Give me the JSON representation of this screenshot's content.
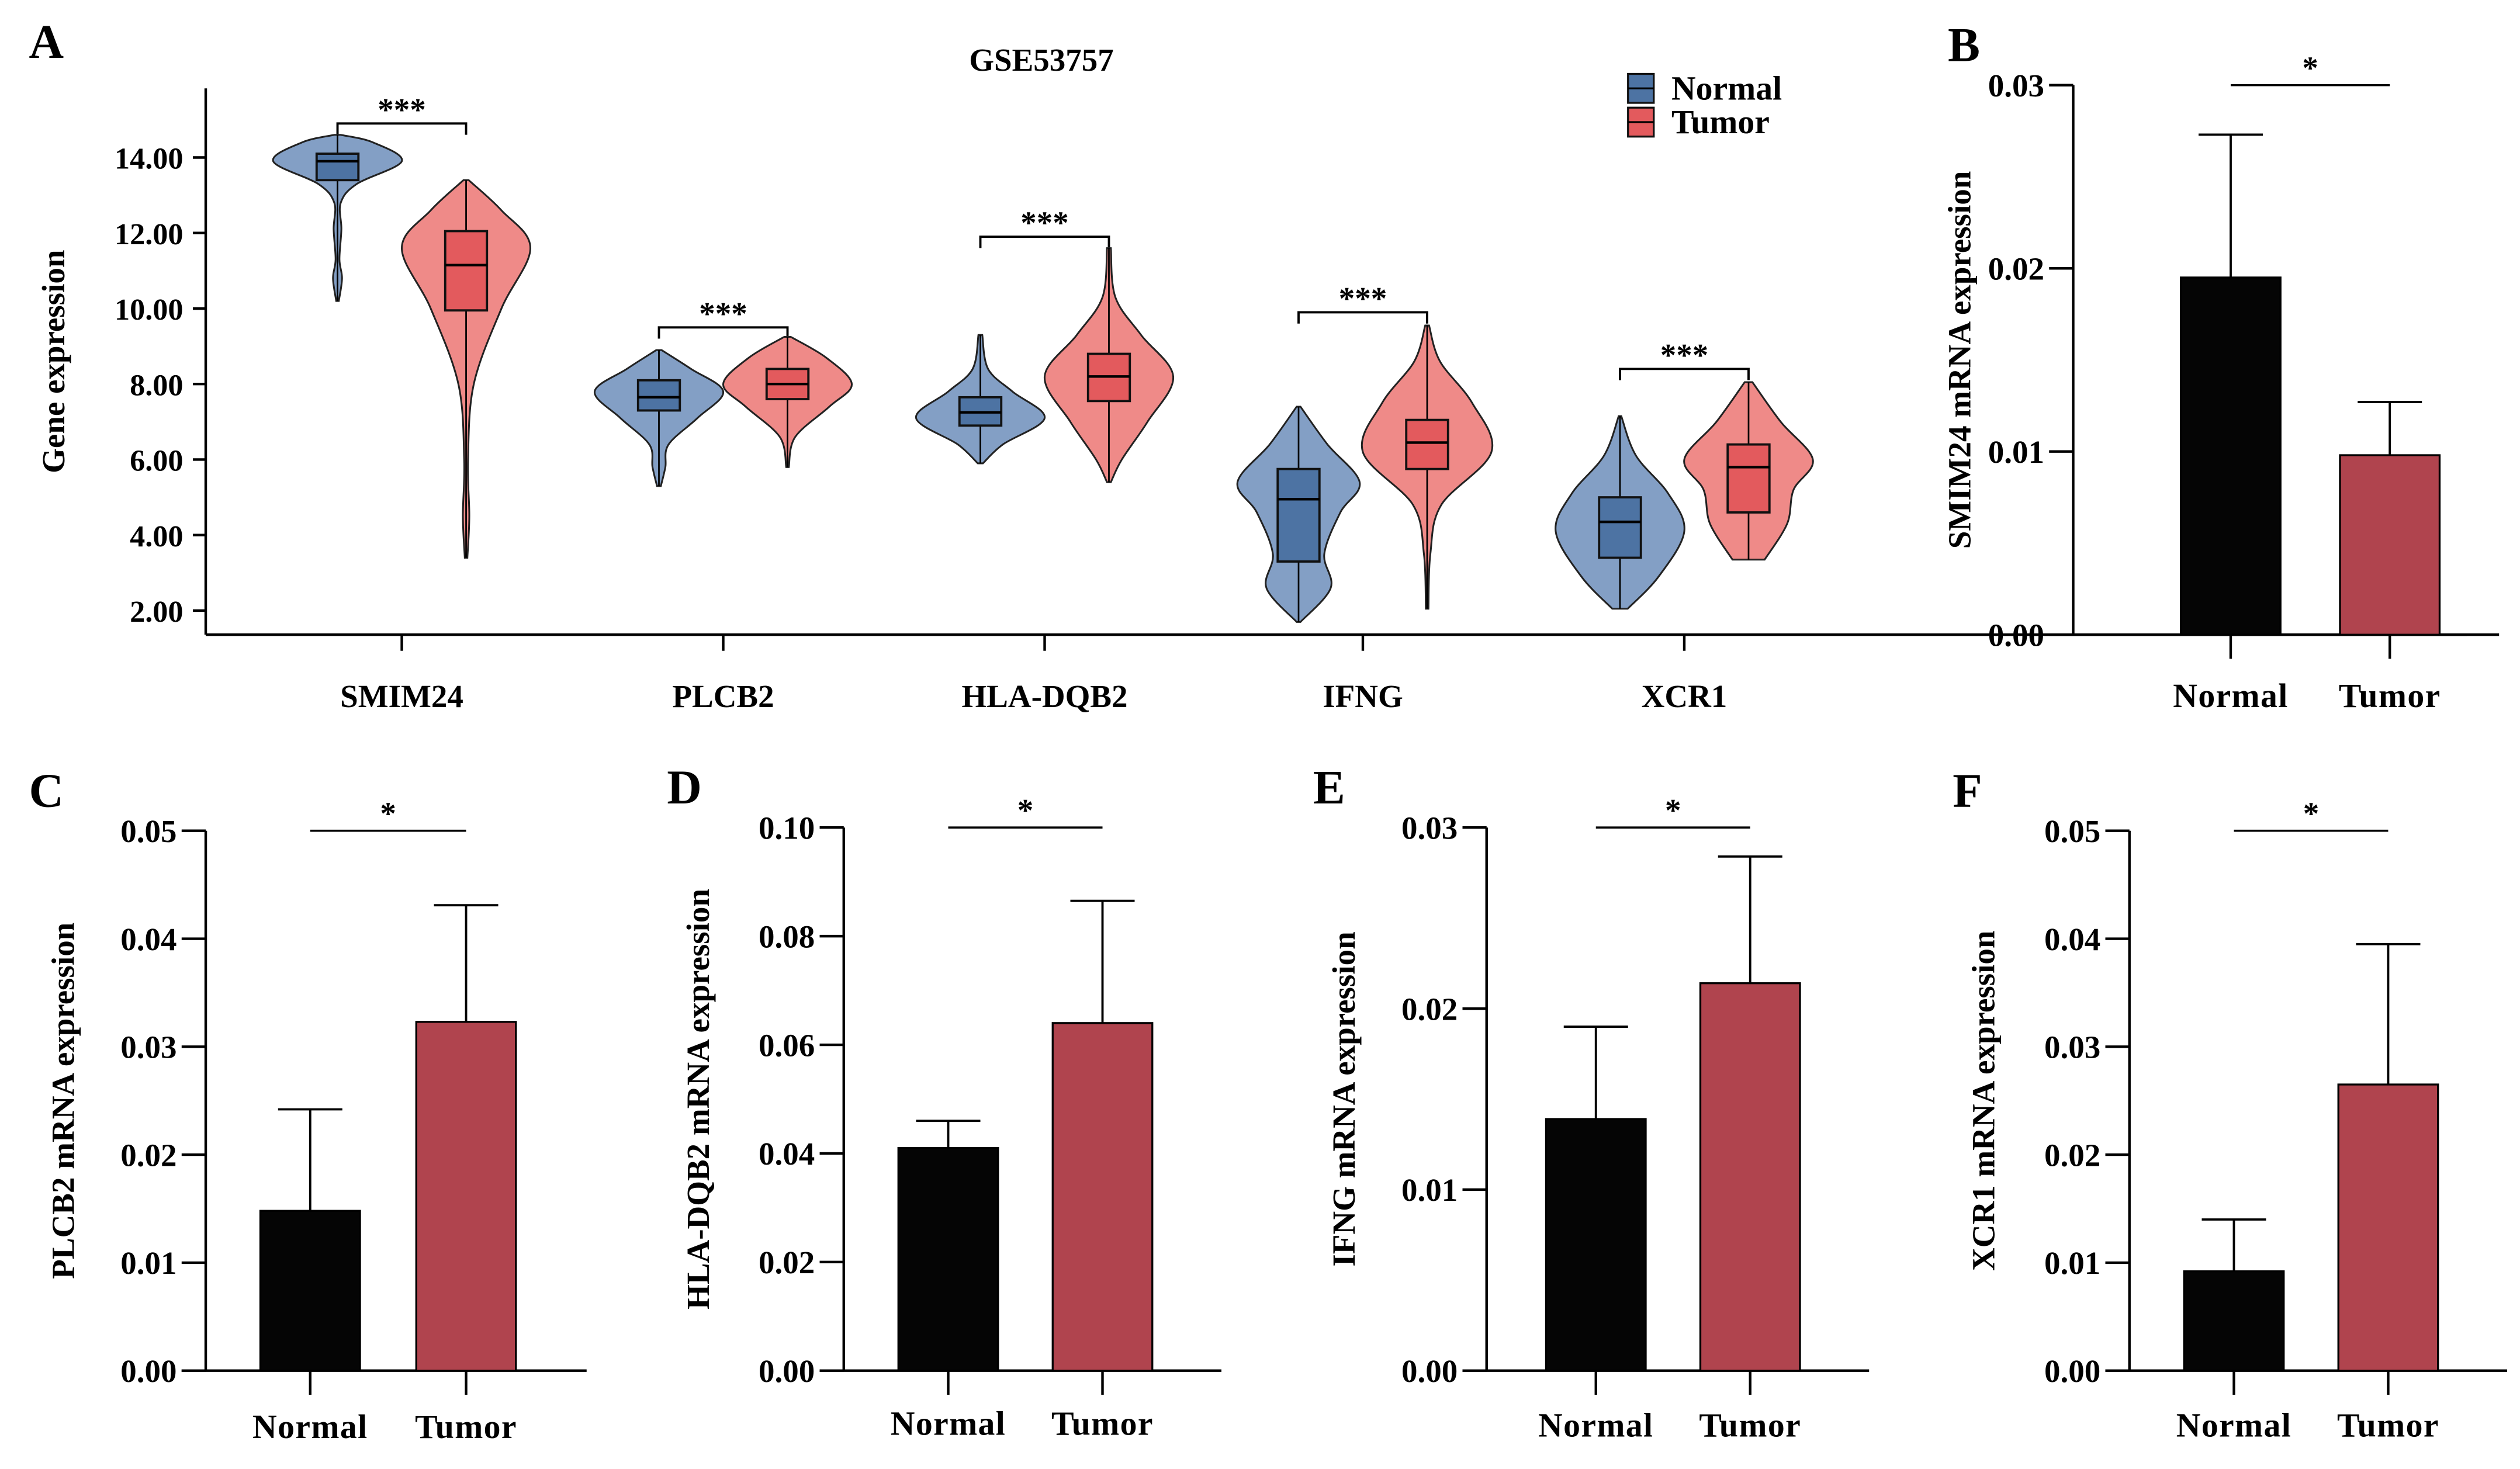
{
  "chart_data": [
    {
      "panel": "A",
      "type": "violin",
      "title": "GSE53757",
      "ylabel": "Gene expression",
      "xlabel": "",
      "ylim": [
        1.5,
        15.5
      ],
      "yticks": [
        "2.00",
        "4.00",
        "6.00",
        "8.00",
        "10.00",
        "12.00",
        "14.00"
      ],
      "ytick_values": [
        2,
        4,
        6,
        8,
        10,
        12,
        14
      ],
      "legend": {
        "placement": "top-right",
        "entries": [
          "Normal",
          "Tumor"
        ]
      },
      "colors": {
        "normal_violin": "#839fc5",
        "normal_box": "#4d73a3",
        "tumor_violin": "#ef8a88",
        "tumor_box": "#e35a5d"
      },
      "categories": [
        "SMIM24",
        "PLCB2",
        "HLA-DQB2",
        "IFNG",
        "XCR1"
      ],
      "significance": [
        "***",
        "***",
        "***",
        "***",
        "***"
      ],
      "bracket_values": [
        14.9,
        9.5,
        11.9,
        9.9,
        8.4
      ],
      "series": [
        {
          "name": "Normal",
          "groups": [
            {
              "min": 10.2,
              "q1": 13.4,
              "median": 13.9,
              "q3": 14.1,
              "max": 14.6,
              "density": [
                [
                  10.2,
                  0.02
                ],
                [
                  10.8,
                  0.07
                ],
                [
                  11.3,
                  0.03
                ],
                [
                  12.1,
                  0.06
                ],
                [
                  12.8,
                  0.05
                ],
                [
                  13.3,
                  0.3
                ],
                [
                  13.9,
                  1
                ],
                [
                  14.4,
                  0.55
                ],
                [
                  14.6,
                  0.05
                ]
              ]
            },
            {
              "min": 5.3,
              "q1": 7.3,
              "median": 7.65,
              "q3": 8.1,
              "max": 8.9,
              "density": [
                [
                  5.3,
                  0.03
                ],
                [
                  5.8,
                  0.1
                ],
                [
                  6.4,
                  0.15
                ],
                [
                  7.1,
                  0.6
                ],
                [
                  7.8,
                  1
                ],
                [
                  8.4,
                  0.5
                ],
                [
                  8.9,
                  0.04
                ]
              ]
            },
            {
              "min": 5.9,
              "q1": 6.9,
              "median": 7.25,
              "q3": 7.65,
              "max": 9.3,
              "density": [
                [
                  5.9,
                  0.04
                ],
                [
                  6.4,
                  0.35
                ],
                [
                  7.1,
                  1
                ],
                [
                  7.8,
                  0.5
                ],
                [
                  8.4,
                  0.12
                ],
                [
                  9.3,
                  0.03
                ]
              ]
            },
            {
              "min": 1.7,
              "q1": 3.3,
              "median": 4.95,
              "q3": 5.75,
              "max": 7.4,
              "density": [
                [
                  1.7,
                  0.03
                ],
                [
                  2.6,
                  0.5
                ],
                [
                  3.5,
                  0.4
                ],
                [
                  4.6,
                  0.65
                ],
                [
                  5.4,
                  0.95
                ],
                [
                  6.4,
                  0.45
                ],
                [
                  7.4,
                  0.03
                ]
              ]
            },
            {
              "min": 2.05,
              "q1": 3.4,
              "median": 4.35,
              "q3": 5.0,
              "max": 7.15,
              "density": [
                [
                  2.05,
                  0.12
                ],
                [
                  2.9,
                  0.6
                ],
                [
                  4.1,
                  1
                ],
                [
                  5.1,
                  0.75
                ],
                [
                  6.1,
                  0.25
                ],
                [
                  7.15,
                  0.02
                ]
              ]
            }
          ]
        },
        {
          "name": "Tumor",
          "groups": [
            {
              "min": 3.4,
              "q1": 9.95,
              "median": 11.15,
              "q3": 12.05,
              "max": 13.4,
              "density": [
                [
                  3.4,
                  0.02
                ],
                [
                  4.5,
                  0.05
                ],
                [
                  6,
                  0.03
                ],
                [
                  8,
                  0.12
                ],
                [
                  10,
                  0.55
                ],
                [
                  11.6,
                  1
                ],
                [
                  12.6,
                  0.55
                ],
                [
                  13.4,
                  0.04
                ]
              ]
            },
            {
              "min": 5.8,
              "q1": 7.6,
              "median": 8.0,
              "q3": 8.4,
              "max": 9.25,
              "density": [
                [
                  5.8,
                  0.02
                ],
                [
                  6.6,
                  0.12
                ],
                [
                  7.4,
                  0.65
                ],
                [
                  8.0,
                  1
                ],
                [
                  8.7,
                  0.6
                ],
                [
                  9.25,
                  0.05
                ]
              ]
            },
            {
              "min": 5.4,
              "q1": 7.55,
              "median": 8.2,
              "q3": 8.8,
              "max": 11.6,
              "density": [
                [
                  5.4,
                  0.03
                ],
                [
                  6.0,
                  0.2
                ],
                [
                  7.0,
                  0.6
                ],
                [
                  8.2,
                  1
                ],
                [
                  9.3,
                  0.5
                ],
                [
                  10.3,
                  0.1
                ],
                [
                  11.6,
                  0.03
                ]
              ]
            },
            {
              "min": 2.05,
              "q1": 5.75,
              "median": 6.45,
              "q3": 7.05,
              "max": 9.55,
              "density": [
                [
                  2.05,
                  0.02
                ],
                [
                  3.5,
                  0.05
                ],
                [
                  4.8,
                  0.22
                ],
                [
                  6.2,
                  1
                ],
                [
                  7.5,
                  0.7
                ],
                [
                  8.6,
                  0.2
                ],
                [
                  9.55,
                  0.03
                ]
              ]
            },
            {
              "min": 3.35,
              "q1": 4.6,
              "median": 5.8,
              "q3": 6.4,
              "max": 8.05,
              "density": [
                [
                  3.35,
                  0.25
                ],
                [
                  4.3,
                  0.6
                ],
                [
                  5.2,
                  0.7
                ],
                [
                  6.0,
                  1
                ],
                [
                  7.0,
                  0.5
                ],
                [
                  8.05,
                  0.06
                ]
              ]
            }
          ]
        }
      ]
    },
    {
      "panel": "B",
      "type": "bar",
      "ylabel": "SMIM24 mRNA expression",
      "categories": [
        "Normal",
        "Tumor"
      ],
      "values": [
        0.0195,
        0.0098
      ],
      "error_upper": [
        0.0273,
        0.0127
      ],
      "ylim": [
        0,
        0.03
      ],
      "yticks": [
        "0.00",
        "0.01",
        "0.02",
        "0.03"
      ],
      "ytick_values": [
        0,
        0.01,
        0.02,
        0.03
      ],
      "significance": "*",
      "colors": [
        "#050505",
        "#b0444e"
      ]
    },
    {
      "panel": "C",
      "type": "bar",
      "ylabel": "PLCB2 mRNA expression",
      "categories": [
        "Normal",
        "Tumor"
      ],
      "values": [
        0.0148,
        0.0323
      ],
      "error_upper": [
        0.0242,
        0.0431
      ],
      "ylim": [
        0,
        0.05
      ],
      "yticks": [
        "0.00",
        "0.01",
        "0.02",
        "0.03",
        "0.04",
        "0.05"
      ],
      "ytick_values": [
        0,
        0.01,
        0.02,
        0.03,
        0.04,
        0.05
      ],
      "significance": "*",
      "colors": [
        "#050505",
        "#b0444e"
      ]
    },
    {
      "panel": "D",
      "type": "bar",
      "ylabel": "HLA-DQB2 mRNA expression",
      "categories": [
        "Normal",
        "Tumor"
      ],
      "values": [
        0.041,
        0.064
      ],
      "error_upper": [
        0.046,
        0.0865
      ],
      "ylim": [
        0,
        0.1
      ],
      "yticks": [
        "0.00",
        "0.02",
        "0.04",
        "0.06",
        "0.08",
        "0.10"
      ],
      "ytick_values": [
        0,
        0.02,
        0.04,
        0.06,
        0.08,
        0.1
      ],
      "significance": "*",
      "colors": [
        "#050505",
        "#b0444e"
      ]
    },
    {
      "panel": "E",
      "type": "bar",
      "ylabel": "IFNG mRNA expression",
      "categories": [
        "Normal",
        "Tumor"
      ],
      "values": [
        0.0139,
        0.0214
      ],
      "error_upper": [
        0.019,
        0.0284
      ],
      "ylim": [
        0,
        0.03
      ],
      "yticks": [
        "0.00",
        "0.01",
        "0.02",
        "0.03"
      ],
      "ytick_values": [
        0,
        0.01,
        0.02,
        0.03
      ],
      "significance": "*",
      "colors": [
        "#050505",
        "#b0444e"
      ]
    },
    {
      "panel": "F",
      "type": "bar",
      "ylabel": "XCR1 mRNA expression",
      "categories": [
        "Normal",
        "Tumor"
      ],
      "values": [
        0.0092,
        0.0265
      ],
      "error_upper": [
        0.014,
        0.0395
      ],
      "ylim": [
        0,
        0.05
      ],
      "yticks": [
        "0.00",
        "0.01",
        "0.02",
        "0.03",
        "0.04",
        "0.05"
      ],
      "ytick_values": [
        0,
        0.01,
        0.02,
        0.03,
        0.04,
        0.05
      ],
      "significance": "*",
      "colors": [
        "#050505",
        "#b0444e"
      ]
    }
  ]
}
